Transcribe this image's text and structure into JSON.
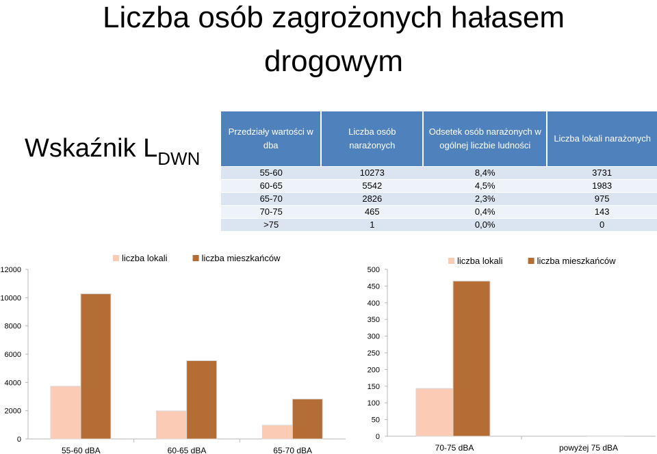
{
  "title": {
    "line1": "Liczba osób zagrożonych hałasem",
    "line2": "drogowym"
  },
  "indicator": {
    "label": "Wskaźnik L",
    "subscript": "DWN"
  },
  "table": {
    "headers": [
      "Przedziały wartości w dba",
      "Liczba osób narażonych",
      "Odsetek osób narażonych w ogólnej liczbie ludności",
      "Liczba lokali narażonych"
    ],
    "rows": [
      [
        "55-60",
        "10273",
        "8,4%",
        "3731"
      ],
      [
        "60-65",
        "5542",
        "4,5%",
        "1983"
      ],
      [
        "65-70",
        "2826",
        "2,3%",
        "975"
      ],
      [
        "70-75",
        "465",
        "0,4%",
        "143"
      ],
      [
        ">75",
        "1",
        "0,0%",
        "0"
      ]
    ]
  },
  "chart_data": [
    {
      "type": "bar",
      "categories": [
        "55-60 dBA",
        "60-65 dBA",
        "65-70 dBA"
      ],
      "series": [
        {
          "name": "liczba lokali",
          "values": [
            3731,
            1983,
            975
          ],
          "color": "#fbcbb5"
        },
        {
          "name": "liczba mieszkańców",
          "values": [
            10273,
            5542,
            2826
          ],
          "color": "#b46d35"
        }
      ],
      "yticks": [
        "0",
        "2000",
        "4000",
        "6000",
        "8000",
        "10000",
        "12000"
      ],
      "ylim": [
        0,
        12000
      ],
      "legend": "top"
    },
    {
      "type": "bar",
      "categories": [
        "70-75 dBA",
        "powyżej 75 dBA"
      ],
      "series": [
        {
          "name": "liczba lokali",
          "values": [
            143,
            0
          ],
          "color": "#fbcbb5"
        },
        {
          "name": "liczba mieszkańców",
          "values": [
            465,
            1
          ],
          "color": "#b46d35"
        }
      ],
      "yticks": [
        "0",
        "50",
        "100",
        "150",
        "200",
        "250",
        "300",
        "350",
        "400",
        "450",
        "500"
      ],
      "ylim": [
        0,
        500
      ],
      "legend": "top"
    }
  ]
}
